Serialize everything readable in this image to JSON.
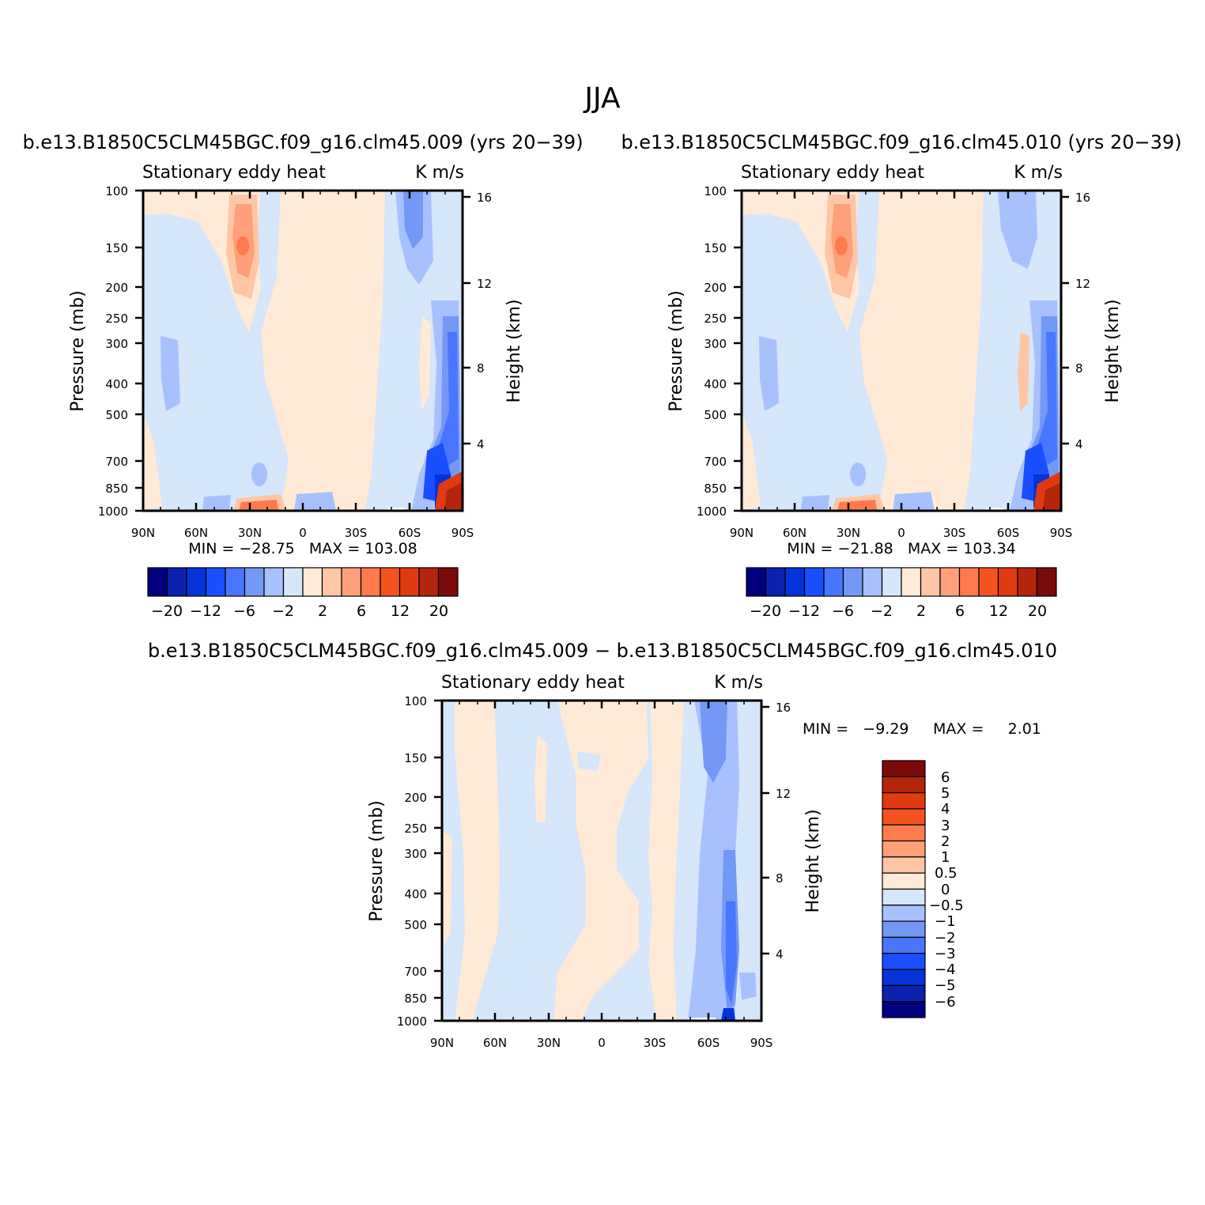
{
  "figure": {
    "title": "JJA"
  },
  "panels": [
    {
      "id": "case1",
      "title": "b.e13.B1850C5CLM45BGC.f09_g16.clm45.009 (yrs 20−39)",
      "left_string": "Stationary eddy heat",
      "right_string": "K m/s",
      "ylabel": "Pressure (mb)",
      "ylabel_right": "Height (km)",
      "stats": "MIN = −28.75   MAX = 103.08"
    },
    {
      "id": "case2",
      "title": "b.e13.B1850C5CLM45BGC.f09_g16.clm45.010 (yrs 20−39)",
      "left_string": "Stationary eddy heat",
      "right_string": "K m/s",
      "ylabel": "Pressure (mb)",
      "ylabel_right": "Height (km)",
      "stats": "MIN = −21.88   MAX = 103.34"
    },
    {
      "id": "diff",
      "title": "b.e13.B1850C5CLM45BGC.f09_g16.clm45.009 − b.e13.B1850C5CLM45BGC.f09_g16.clm45.010",
      "left_string": "Stationary eddy heat",
      "right_string": "K m/s",
      "ylabel": "Pressure (mb)",
      "ylabel_right": "Height (km)",
      "stats_min": "MIN =   −9.29",
      "stats_max": "MAX =     2.01"
    }
  ],
  "chart_data": [
    {
      "type": "heatmap",
      "title": "b.e13.B1850C5CLM45BGC.f09_g16.clm45.009 (yrs 20−39)",
      "xlabel": "",
      "ylabel": "Pressure (mb)",
      "x_ticks": [
        "90N",
        "60N",
        "30N",
        "0",
        "30S",
        "60S",
        "90S"
      ],
      "x_range": [
        90,
        -90
      ],
      "y_ticks": [
        100,
        150,
        200,
        250,
        300,
        400,
        500,
        700,
        850,
        1000
      ],
      "y_scale": "log",
      "y_range": [
        100,
        1000
      ],
      "y2_label": "Height (km)",
      "y2_ticks": [
        4,
        8,
        12,
        16
      ],
      "min": -28.75,
      "max": 103.08
    },
    {
      "type": "heatmap",
      "title": "b.e13.B1850C5CLM45BGC.f09_g16.clm45.010 (yrs 20−39)",
      "xlabel": "",
      "ylabel": "Pressure (mb)",
      "x_ticks": [
        "90N",
        "60N",
        "30N",
        "0",
        "30S",
        "60S",
        "90S"
      ],
      "x_range": [
        90,
        -90
      ],
      "y_ticks": [
        100,
        150,
        200,
        250,
        300,
        400,
        500,
        700,
        850,
        1000
      ],
      "y_scale": "log",
      "y_range": [
        100,
        1000
      ],
      "y2_label": "Height (km)",
      "y2_ticks": [
        4,
        8,
        12,
        16
      ],
      "min": -21.88,
      "max": 103.34
    },
    {
      "type": "heatmap",
      "title": "b.e13.B1850C5CLM45BGC.f09_g16.clm45.009 − b.e13.B1850C5CLM45BGC.f09_g16.clm45.010",
      "xlabel": "",
      "ylabel": "Pressure (mb)",
      "x_ticks": [
        "90N",
        "60N",
        "30N",
        "0",
        "30S",
        "60S",
        "90S"
      ],
      "x_range": [
        90,
        -90
      ],
      "y_ticks": [
        100,
        150,
        200,
        250,
        300,
        400,
        500,
        700,
        850,
        1000
      ],
      "y_scale": "log",
      "y_range": [
        100,
        1000
      ],
      "y2_label": "Height (km)",
      "y2_ticks": [
        4,
        8,
        12,
        16
      ],
      "min": -9.29,
      "max": 2.01
    }
  ],
  "colorbar_top": {
    "colors": [
      "#00007f",
      "#0a22ad",
      "#0433d9",
      "#1a4fff",
      "#4876ff",
      "#7498f5",
      "#a7c1ff",
      "#d6e6fb",
      "#ffead8",
      "#ffc6a5",
      "#ffa07a",
      "#ff7a4d",
      "#f2531f",
      "#e03a10",
      "#b4250c",
      "#7c0a0a"
    ],
    "labels": [
      "−20",
      "−12",
      "−6",
      "−2",
      "2",
      "6",
      "12",
      "20"
    ]
  },
  "colorbar_diff": {
    "colors": [
      "#00007f",
      "#0a22ad",
      "#0433d9",
      "#1a4fff",
      "#4876ff",
      "#7498f5",
      "#a7c1ff",
      "#d6e6fb",
      "#ffead8",
      "#ffc6a5",
      "#ffa07a",
      "#ff7a4d",
      "#f2531f",
      "#e03a10",
      "#b4250c",
      "#7c0a0a"
    ],
    "labels": [
      "6",
      "5",
      "4",
      "3",
      "2",
      "1",
      "0.5",
      "0",
      "−0.5",
      "−1",
      "−2",
      "−3",
      "−4",
      "−5",
      "−6"
    ]
  }
}
